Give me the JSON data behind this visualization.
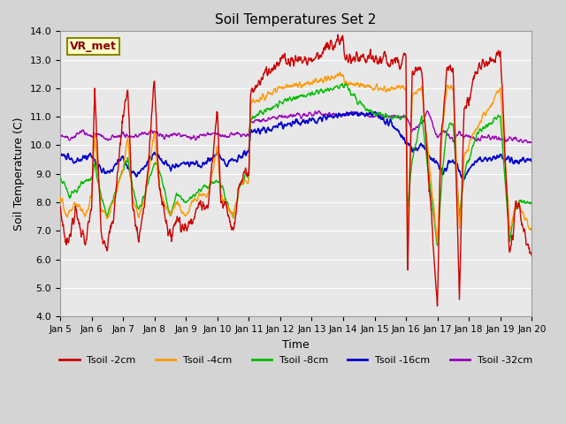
{
  "title": "Soil Temperatures Set 2",
  "xlabel": "Time",
  "ylabel": "Soil Temperature (C)",
  "ylim": [
    4.0,
    14.0
  ],
  "yticks": [
    4.0,
    5.0,
    6.0,
    7.0,
    8.0,
    9.0,
    10.0,
    11.0,
    12.0,
    13.0,
    14.0
  ],
  "xtick_labels": [
    "Jan 5",
    "Jan 6",
    "Jan 7",
    "Jan 8",
    "Jan 9",
    "Jan 10",
    "Jan 11",
    "Jan 12",
    "Jan 13",
    "Jan 14",
    "Jan 15",
    "Jan 16",
    "Jan 17",
    "Jan 18",
    "Jan 19",
    "Jan 20"
  ],
  "legend_labels": [
    "Tsoil -2cm",
    "Tsoil -4cm",
    "Tsoil -8cm",
    "Tsoil -16cm",
    "Tsoil -32cm"
  ],
  "colors": [
    "#cc0000",
    "#ff9900",
    "#00bb00",
    "#0000cc",
    "#9900bb"
  ],
  "annotation_text": "VR_met",
  "background_color": "#d4d4d4",
  "plot_bg_color": "#e8e8e8"
}
